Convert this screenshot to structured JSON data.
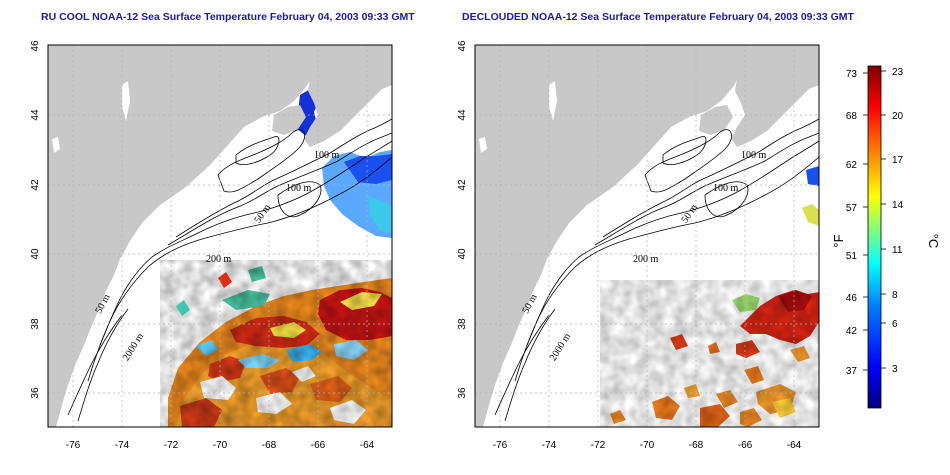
{
  "panels": [
    {
      "id": "left",
      "title": "RU COOL NOAA-12 Sea Surface Temperature February 04, 2003 09:33 GMT",
      "contour_labels": [
        "100 m",
        "100 m",
        "50 m",
        "200 m",
        "50 m",
        "2000 m"
      ]
    },
    {
      "id": "right",
      "title": "DECLOUDED NOAA-12 Sea Surface Temperature February 04, 2003 09:33 GMT",
      "contour_labels": [
        "100 m",
        "100 m",
        "50 m",
        "200 m",
        "50 m",
        "2000 m"
      ]
    }
  ],
  "axes": {
    "lon_range": [
      -77,
      -63
    ],
    "lat_range": [
      35,
      46
    ],
    "lon_ticks": [
      "-76",
      "-74",
      "-72",
      "-70",
      "-68",
      "-66",
      "-64"
    ],
    "lat_ticks": [
      "36",
      "38",
      "40",
      "42",
      "44",
      "46"
    ]
  },
  "colorbar": {
    "fahrenheit_ticks": [
      "73",
      "68",
      "62",
      "57",
      "51",
      "46",
      "42",
      "37"
    ],
    "celsius_ticks": [
      "23",
      "20",
      "17",
      "14",
      "11",
      "8",
      "6",
      "3"
    ],
    "fahrenheit_unit": "°F",
    "celsius_unit": "°C",
    "range_celsius": [
      0,
      24
    ],
    "colors": [
      "#00007f",
      "#0000ff",
      "#007fff",
      "#00ffff",
      "#7fff7f",
      "#ffff00",
      "#ff7f00",
      "#ff0000",
      "#7f0000"
    ]
  },
  "colors": {
    "land": "#c8c8c8",
    "ocean": "#ffffff",
    "grid": "#b4b4b4",
    "title": "#1c1c9c"
  }
}
